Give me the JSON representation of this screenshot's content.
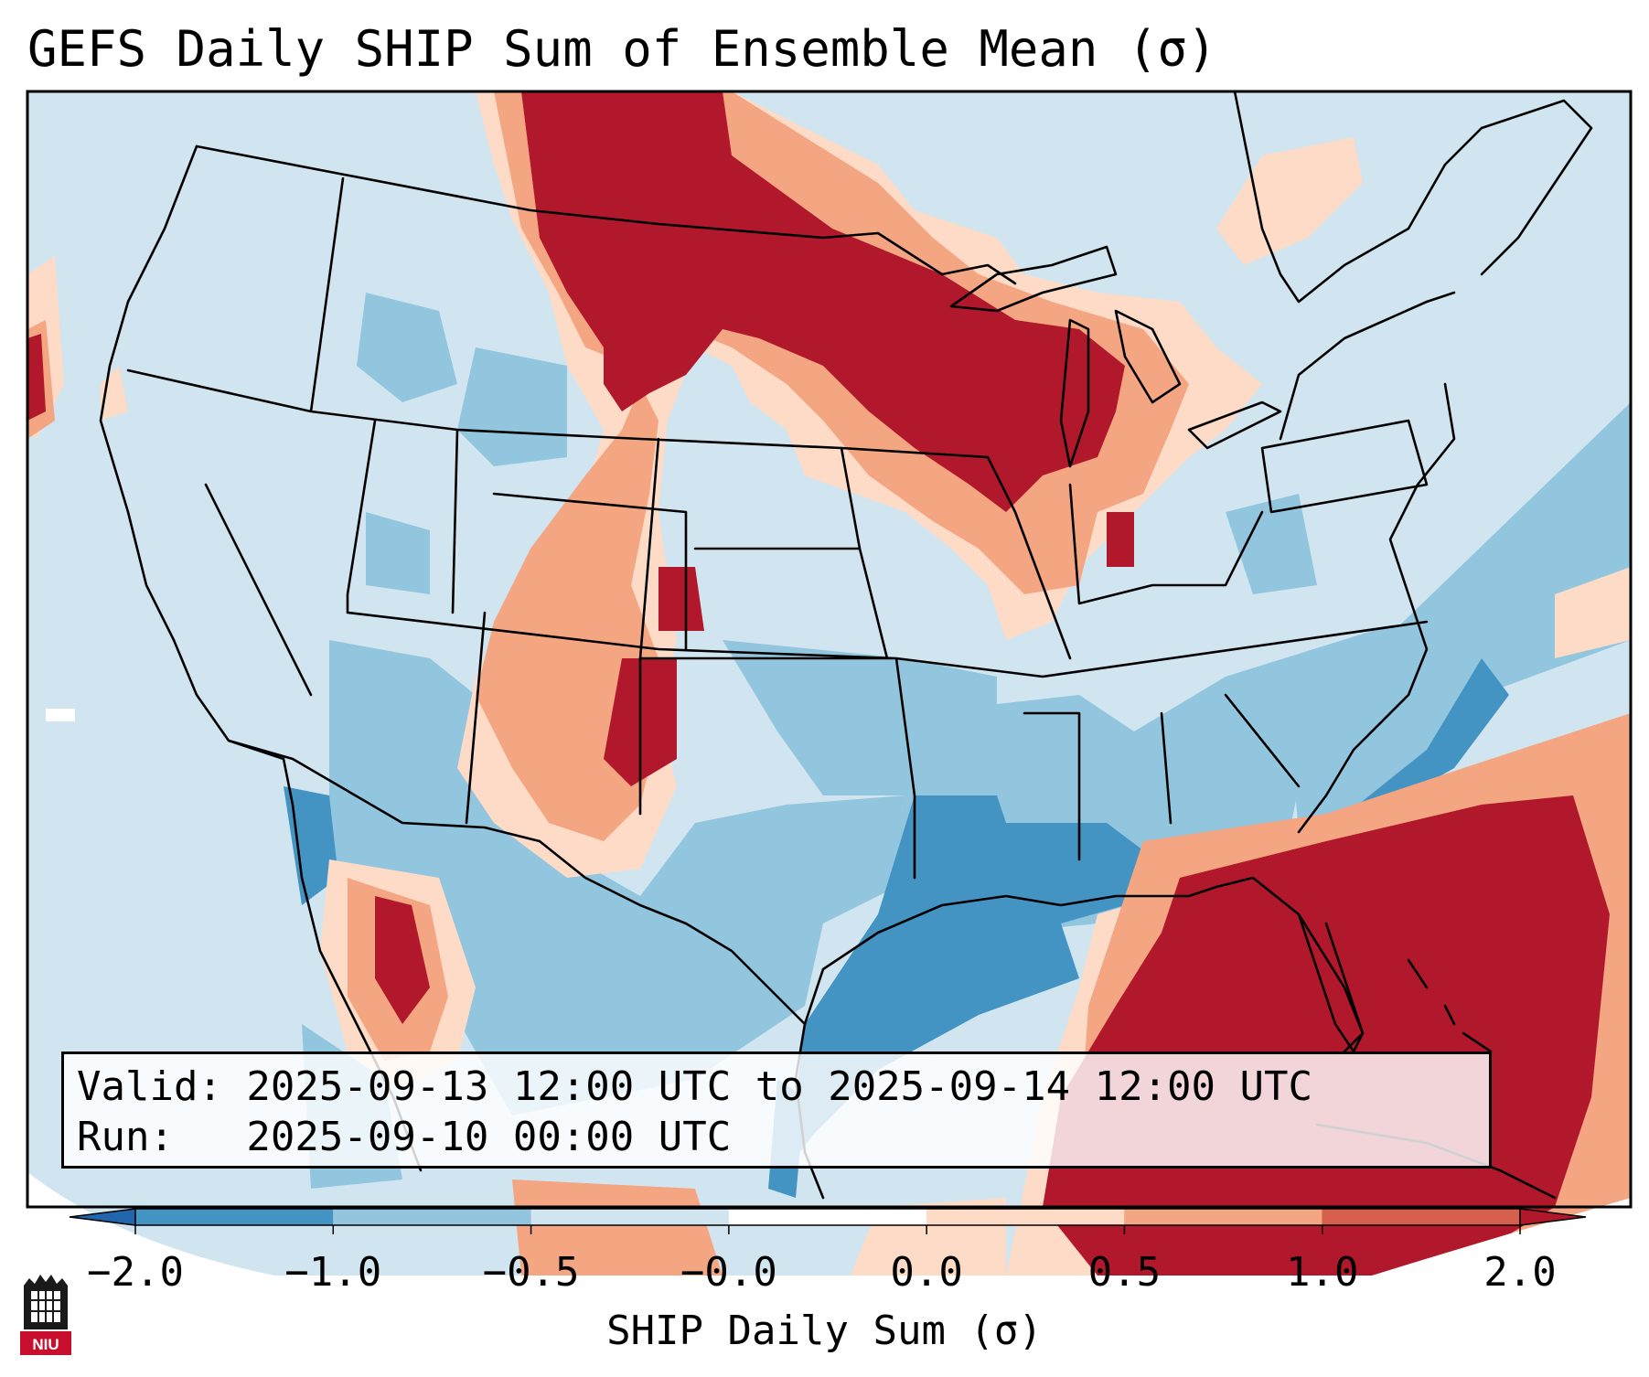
{
  "title": "GEFS Daily SHIP Sum of Ensemble Mean (σ)",
  "info": {
    "valid_line": "Valid: 2025-09-13 12:00 UTC to 2025-09-14 12:00 UTC",
    "run_line": "Run:   2025-09-10 00:00 UTC"
  },
  "colorbar": {
    "label": "SHIP Daily Sum (σ)",
    "ticks": [
      "−2.0",
      "−1.0",
      "−0.5",
      "−0.0",
      "0.0",
      "0.5",
      "1.0",
      "2.0"
    ],
    "colors": [
      "#4393c3",
      "#92c5de",
      "#d1e5f0",
      "#ffffff",
      "#fddbc7",
      "#f4a582",
      "#d6604d",
      "#b2182b"
    ],
    "under_color": "#2166ac",
    "over_color": "#b2182b"
  },
  "logo": {
    "text": "NIU"
  },
  "colors": {
    "ocean_base": "#d1e5f0",
    "land_base": "#d1e5f0",
    "border": "#000000"
  }
}
